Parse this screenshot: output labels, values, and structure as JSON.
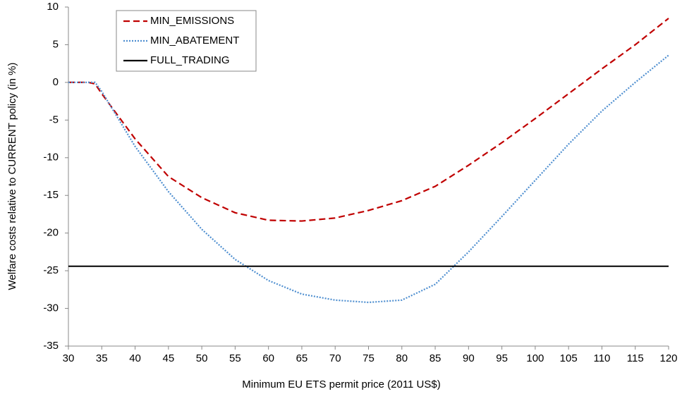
{
  "chart_data": {
    "type": "line",
    "xlabel": "Minimum EU ETS permit price (2011 US$)",
    "ylabel": "Welfare costs relative to CURRENT policy (in %)",
    "x": [
      30,
      33,
      34,
      35,
      40,
      45,
      50,
      55,
      60,
      65,
      70,
      75,
      80,
      85,
      90,
      95,
      100,
      105,
      110,
      115,
      120
    ],
    "series": [
      {
        "name": "MIN_EMISSIONS",
        "color": "#c00000",
        "dash": "dashed",
        "values": [
          0,
          0,
          -0.2,
          -1.5,
          -7.5,
          -12.5,
          -15.3,
          -17.3,
          -18.3,
          -18.4,
          -18,
          -17,
          -15.7,
          -13.8,
          -11,
          -8,
          -4.8,
          -1.5,
          1.8,
          5,
          8.5
        ]
      },
      {
        "name": "MIN_ABATEMENT",
        "color": "#4f8fd0",
        "dash": "dotted",
        "values": [
          0,
          0,
          0,
          -1.2,
          -8.5,
          -14.5,
          -19.5,
          -23.5,
          -26.3,
          -28.1,
          -28.9,
          -29.2,
          -28.9,
          -26.8,
          -22.5,
          -17.8,
          -13,
          -8.2,
          -3.8,
          0,
          3.6
        ]
      },
      {
        "name": "FULL_TRADING",
        "color": "#000000",
        "dash": "solid",
        "values": [
          -24.4,
          -24.4,
          -24.4,
          -24.4,
          -24.4,
          -24.4,
          -24.4,
          -24.4,
          -24.4,
          -24.4,
          -24.4,
          -24.4,
          -24.4,
          -24.4,
          -24.4,
          -24.4,
          -24.4,
          -24.4,
          -24.4,
          -24.4,
          -24.4
        ]
      }
    ],
    "xlim": [
      30,
      120
    ],
    "xticks": [
      30,
      35,
      40,
      45,
      50,
      55,
      60,
      65,
      70,
      75,
      80,
      85,
      90,
      95,
      100,
      105,
      110,
      115,
      120
    ],
    "ylim": [
      -35,
      10
    ],
    "yticks": [
      -35,
      -30,
      -25,
      -20,
      -15,
      -10,
      -5,
      0,
      5,
      10
    ],
    "grid": false,
    "legend": "upper left"
  }
}
